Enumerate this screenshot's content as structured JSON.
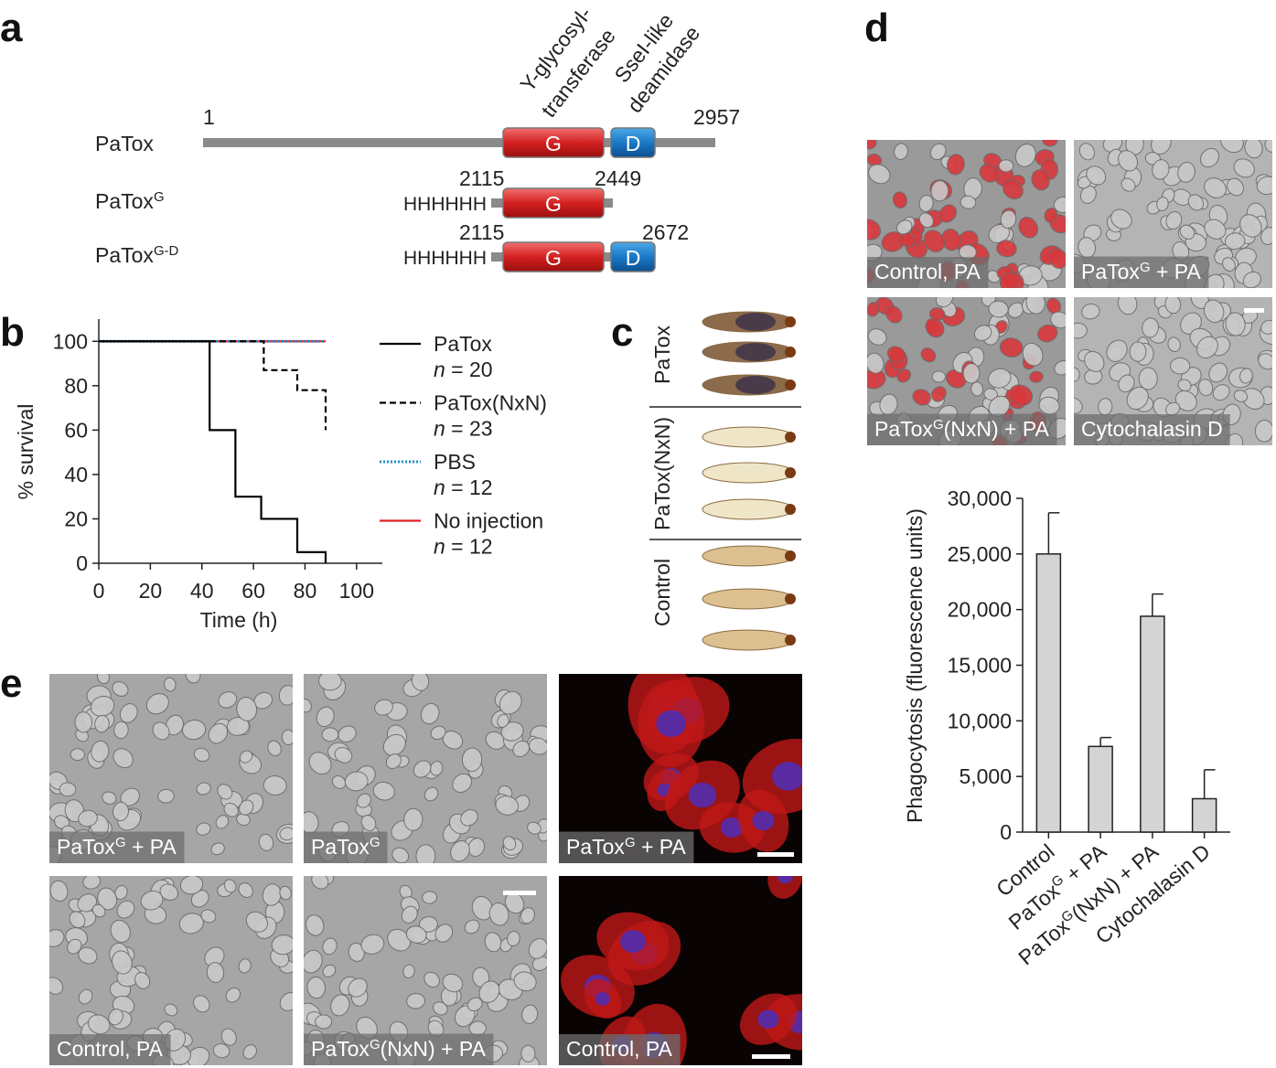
{
  "panel_labels": [
    "a",
    "b",
    "c",
    "d",
    "e"
  ],
  "diagram": {
    "domain_labels": [
      "Y-glycosyl-",
      "transferase",
      "SseI-like",
      "deamidase"
    ],
    "domains": [
      "G",
      "D"
    ],
    "tag": "HHHHHH",
    "rows": [
      {
        "name": [
          "PaTox"
        ],
        "start": 1,
        "end": 2957
      },
      {
        "name": [
          "PaTox",
          {
            "sup": "G"
          }
        ],
        "start": 2115,
        "end": 2449
      },
      {
        "name": [
          "PaTox",
          {
            "sup": "G-D"
          }
        ],
        "start": 2115,
        "end": 2672
      }
    ]
  },
  "chart_data": [
    {
      "type": "line",
      "xlabel": "Time (h)",
      "ylabel": "% survival",
      "xlim": [
        0,
        110
      ],
      "ylim": [
        0,
        110
      ],
      "xticks": [
        0,
        20,
        40,
        60,
        80,
        100
      ],
      "yticks": [
        0,
        20,
        40,
        60,
        80,
        100
      ],
      "series": [
        {
          "name": "PaTox",
          "n": [
            {
              "i": "n"
            },
            " = 20"
          ],
          "color": "#000000",
          "dash": "solid",
          "x": [
            0,
            43,
            43,
            53,
            53,
            63,
            63,
            77,
            77,
            88,
            88
          ],
          "values": [
            100,
            100,
            60,
            60,
            30,
            30,
            20,
            20,
            5,
            5,
            0
          ]
        },
        {
          "name": "PaTox(NxN)",
          "n": [
            {
              "i": "n"
            },
            " = 23"
          ],
          "color": "#000000",
          "dash": "dashed",
          "x": [
            0,
            64,
            64,
            77,
            77,
            88,
            88
          ],
          "values": [
            100,
            100,
            87,
            87,
            78,
            78,
            60
          ]
        },
        {
          "name": "PBS",
          "n": [
            {
              "i": "n"
            },
            " = 12"
          ],
          "color": "#1f8fc9",
          "dash": "dotted",
          "x": [
            0,
            88
          ],
          "values": [
            100,
            100
          ]
        },
        {
          "name": "No injection",
          "n": [
            {
              "i": "n"
            },
            " = 12"
          ],
          "color": "#e0202a",
          "dash": "solid",
          "x": [
            0,
            88
          ],
          "values": [
            100,
            100
          ]
        }
      ]
    },
    {
      "type": "bar",
      "ylabel": "Phagocytosis (fluorescence units)",
      "color": "#d4d4d4",
      "categories": [
        [
          "Control"
        ],
        [
          "PaTox",
          {
            "sup": "G"
          },
          " + PA"
        ],
        [
          "PaTox",
          {
            "sup": "G"
          },
          "(NxN) + PA"
        ],
        [
          "Cytochalasin D"
        ]
      ],
      "values": [
        25000,
        7700,
        19400,
        3000
      ],
      "errors": [
        3700,
        800,
        2000,
        2600
      ],
      "ylim": [
        0,
        30000
      ],
      "yticks": [
        0,
        {
          "value": 5000,
          "label": "5,000"
        },
        {
          "value": 10000,
          "label": "10,000"
        },
        {
          "value": 15000,
          "label": "15,000"
        },
        {
          "value": 20000,
          "label": "20,000"
        },
        {
          "value": 25000,
          "label": "25,000"
        },
        {
          "value": 30000,
          "label": "30,000"
        }
      ]
    }
  ],
  "images": {
    "c": [
      "PaTox",
      "PaTox(NxN)",
      "Control"
    ],
    "d": [
      [
        "Control, PA"
      ],
      [
        "PaTox",
        {
          "sup": "G"
        },
        " + PA"
      ],
      [
        "PaTox",
        {
          "sup": "G"
        },
        "(NxN) + PA"
      ],
      [
        "Cytochalasin D"
      ]
    ],
    "e": [
      [
        "PaTox",
        {
          "sup": "G"
        },
        " + PA"
      ],
      [
        "PaTox",
        {
          "sup": "G"
        }
      ],
      [
        "PaTox",
        {
          "sup": "G"
        },
        " + PA"
      ],
      [
        "Control, PA"
      ],
      [
        "PaTox",
        {
          "sup": "G"
        },
        "(NxN) + PA"
      ],
      [
        "Control, PA"
      ]
    ]
  }
}
